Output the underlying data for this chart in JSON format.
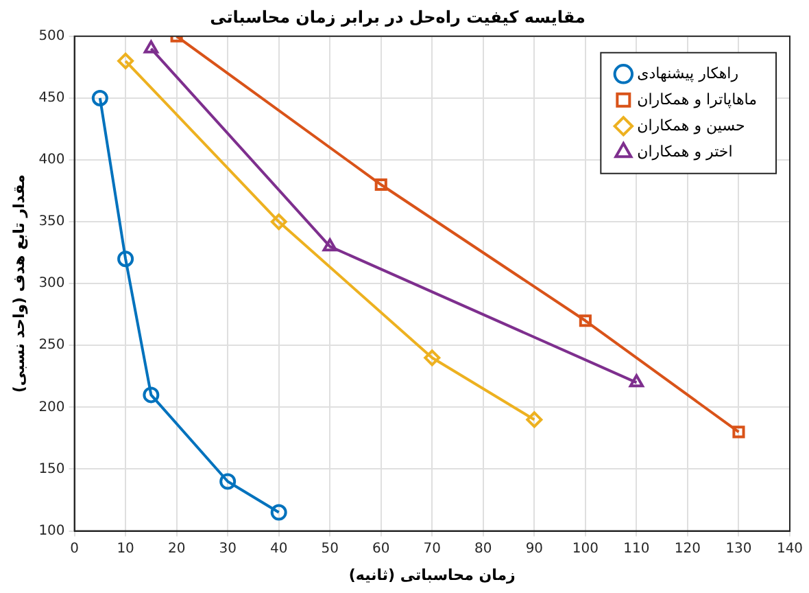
{
  "chart_data": {
    "type": "line",
    "title": "مقایسه کیفیت راه‌حل در برابر زمان محاسباتی",
    "xlabel": "زمان محاسباتی (ثانیه)",
    "ylabel": "مقدار تابع هدف (واحد نسبی)",
    "xlim": [
      0,
      140
    ],
    "xticks": [
      0,
      10,
      20,
      30,
      40,
      50,
      60,
      70,
      80,
      90,
      100,
      110,
      120,
      130,
      140
    ],
    "ylim": [
      100,
      500
    ],
    "yticks": [
      100,
      150,
      200,
      250,
      300,
      350,
      400,
      450,
      500
    ],
    "grid": true,
    "legend": "top right",
    "line_style": "solid",
    "series": [
      {
        "name": "راهکار پیشنهادی",
        "color": "#0072bd",
        "marker": "circle",
        "x": [
          5,
          10,
          15,
          30,
          40
        ],
        "values": [
          450,
          320,
          210,
          140,
          115
        ]
      },
      {
        "name": "ماهاپاترا و همکاران",
        "color": "#d95319",
        "marker": "square",
        "x": [
          20,
          60,
          100,
          130
        ],
        "values": [
          500,
          380,
          270,
          180
        ]
      },
      {
        "name": "حسین و همکاران",
        "color": "#edb120",
        "marker": "diamond",
        "x": [
          10,
          40,
          70,
          90
        ],
        "values": [
          480,
          350,
          240,
          190
        ]
      },
      {
        "name": "اختر و همکاران",
        "color": "#7e2f8e",
        "marker": "triangle",
        "x": [
          15,
          50,
          110
        ],
        "values": [
          490,
          330,
          220
        ]
      }
    ]
  }
}
